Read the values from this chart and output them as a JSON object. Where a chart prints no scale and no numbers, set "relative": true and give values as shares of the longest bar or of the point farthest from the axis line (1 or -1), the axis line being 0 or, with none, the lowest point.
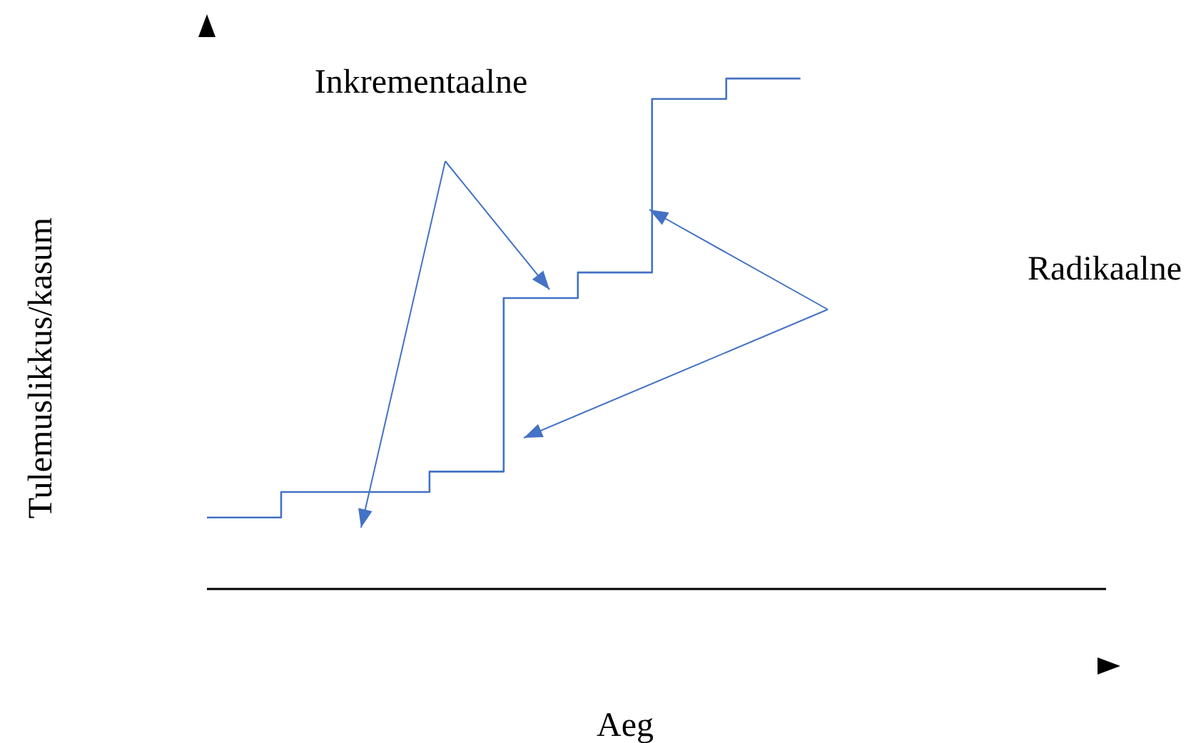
{
  "chart_data": {
    "type": "step",
    "relative": true,
    "xlabel": "Aeg",
    "ylabel": "Tulemuslikkus/kasum",
    "categories": [
      null,
      null,
      null,
      null,
      null,
      null,
      null,
      null,
      null
    ],
    "annotations": [
      "Inkrementaalne",
      "Radikaalne"
    ],
    "grid": false,
    "legend": false,
    "marker": "none",
    "series": [
      {
        "color": "#4472c4",
        "values": [
          0.14,
          0.19,
          0.19,
          0.23,
          0.57,
          0.62,
          0.96,
          1.0,
          1.0
        ]
      }
    ]
  }
}
